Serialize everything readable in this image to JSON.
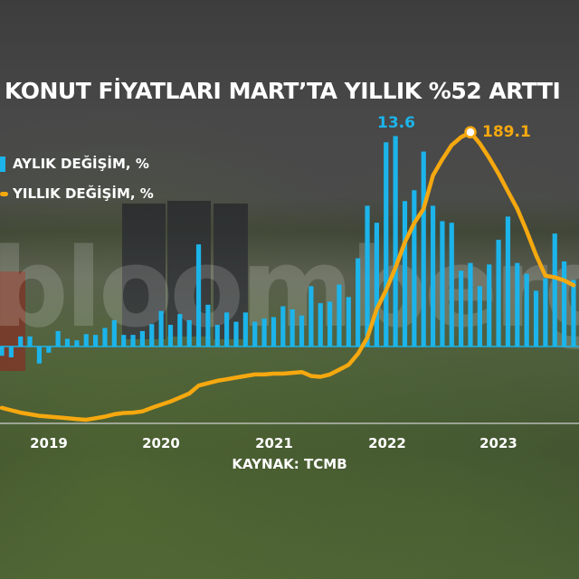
{
  "title": "KONUT FİYATLARI MART’TA YILLIK %52 ARTTI",
  "legend": {
    "monthly": "AYLIK DEĞİŞİM, %",
    "yearly": "YILLIK DEĞİŞİM, %"
  },
  "source": "KAYNAK: TCMB",
  "watermark": "bloomberg",
  "colors": {
    "monthly": "#1cb4ea",
    "yearly": "#f5a80f",
    "text": "#ffffff"
  },
  "chart_data": {
    "type": "bar+line",
    "title": "KONUT FİYATLARI MART’TA YILLIK %52 ARTTI",
    "x_ticks": [
      "2019",
      "2020",
      "2021",
      "2022",
      "2023"
    ],
    "series": [
      {
        "name": "AYLIK DEĞİŞİM, %",
        "type": "bar",
        "values": [
          -0.6,
          -0.7,
          0.65,
          0.65,
          -1.1,
          -0.4,
          1.0,
          0.5,
          0.4,
          0.8,
          0.75,
          1.2,
          1.7,
          0.75,
          0.75,
          1.0,
          1.45,
          2.3,
          1.4,
          2.1,
          1.7,
          6.6,
          2.7,
          1.4,
          2.2,
          1.6,
          2.2,
          1.6,
          1.8,
          1.9,
          2.6,
          2.4,
          2.0,
          3.9,
          2.8,
          2.9,
          4.0,
          3.2,
          5.7,
          9.1,
          8.0,
          13.2,
          13.6,
          9.4,
          10.1,
          12.6,
          9.1,
          8.1,
          8.0,
          4.9,
          5.4,
          3.9,
          5.3,
          6.9,
          8.4,
          5.4,
          4.7,
          3.6,
          4.4,
          7.3,
          5.5,
          4.3
        ]
      },
      {
        "name": "YILLIK DEĞİŞİM, %",
        "type": "line",
        "values": [
          16,
          14.5,
          13,
          12,
          11,
          10.5,
          10,
          9.5,
          9,
          8.5,
          9.5,
          10.5,
          12,
          12.8,
          13,
          13.8,
          16,
          18,
          20,
          22.5,
          25,
          30,
          31.5,
          33,
          34,
          35,
          36,
          37,
          37,
          37.5,
          37.5,
          38,
          38.5,
          36,
          35.5,
          37,
          40,
          43,
          50,
          60,
          78,
          90,
          104,
          120,
          132,
          141,
          162,
          172,
          181,
          186,
          189.1,
          182,
          173,
          163,
          152,
          141,
          127,
          112,
          99,
          98,
          96,
          93
        ]
      }
    ],
    "annotations": [
      {
        "series": "AYLIK DEĞİŞİM, %",
        "label": "13.6"
      },
      {
        "series": "YILLIK DEĞİŞİM, %",
        "label": "189.1"
      }
    ],
    "grid": false,
    "legend_position": "top-left"
  }
}
